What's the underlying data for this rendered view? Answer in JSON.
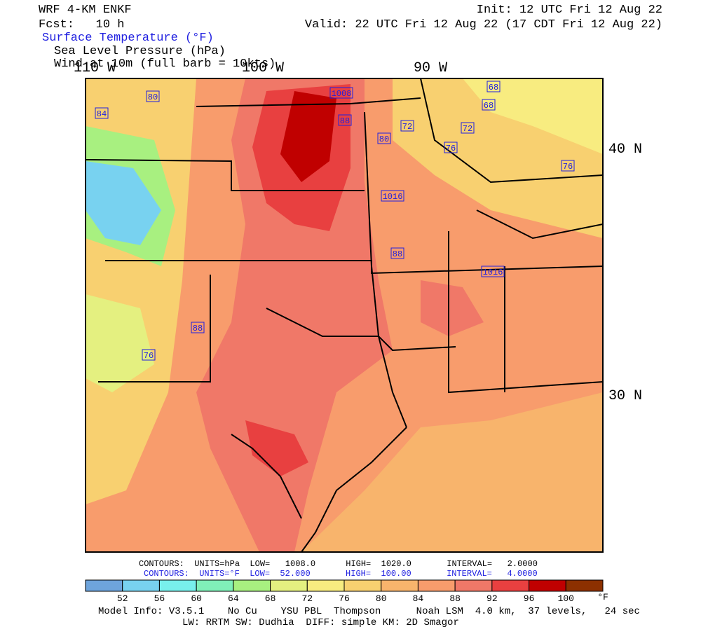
{
  "header": {
    "model": "WRF 4-KM ENKF",
    "fcst": "Fcst:   10 h",
    "init": "Init: 12 UTC Fri 12 Aug 22",
    "valid": "Valid: 22 UTC Fri 12 Aug 22 (17 CDT Fri 12 Aug 22)",
    "fields": [
      "Surface Temperature (°F)",
      "Sea Level Pressure (hPa)",
      "Wind at 10m (full barb = 10kts)"
    ]
  },
  "map": {
    "lon_labels": [
      "110 W",
      "100 W",
      "90 W"
    ],
    "lat_labels": [
      "40 N",
      "30 N"
    ],
    "contour_labels": [
      "1008",
      "80",
      "84",
      "88",
      "80",
      "72",
      "72",
      "76",
      "68",
      "68",
      "76",
      "1016",
      "88",
      "1016",
      "88",
      "76"
    ]
  },
  "footer": {
    "pressure_contours": "CONTOURS:  UNITS=hPa  LOW=   1008.0      HIGH=  1020.0       INTERVAL=   2.0000",
    "temperature_contours": "CONTOURS:  UNITS=°F  LOW=  52.000       HIGH=  100.00       INTERVAL=   4.0000",
    "colorbar": {
      "colors": [
        "#6ea4dc",
        "#78d2f0",
        "#78f0ec",
        "#80f0b8",
        "#a8f080",
        "#e4f080",
        "#f8ec80",
        "#f8d070",
        "#f8b46c",
        "#f89c6c",
        "#f07868",
        "#e84040",
        "#c00000",
        "#8c3000"
      ],
      "labels": [
        "52",
        "56",
        "60",
        "64",
        "68",
        "72",
        "76",
        "80",
        "84",
        "88",
        "92",
        "96",
        "100"
      ],
      "unit": "°F"
    },
    "model_info": "Model Info: V3.5.1    No Cu    YSU PBL  Thompson      Noah LSM  4.0 km,  37 levels,   24 sec",
    "physics": "LW: RRTM SW: Dudhia  DIFF: simple KM: 2D Smagor"
  }
}
